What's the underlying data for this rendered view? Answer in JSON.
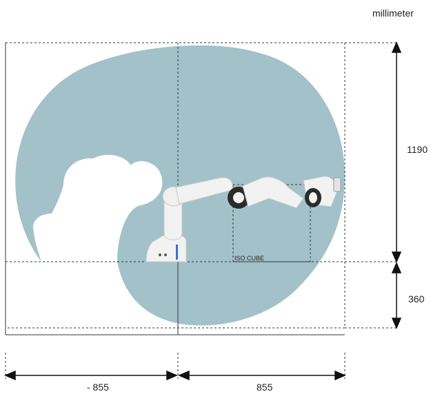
{
  "unit_label": "millimeter",
  "dimensions": {
    "vertical_upper": "1190",
    "vertical_lower": "360",
    "horizontal_left": "- 855",
    "horizontal_right": "855"
  },
  "iso_cube_label": "ISO CUBE",
  "colors": {
    "workspace_fill": "#a3c1c9",
    "robot_body": "#f2f2f2",
    "robot_joint": "#2b2b2b",
    "accent_led": "#3a6fd8",
    "lines": "#333333"
  }
}
